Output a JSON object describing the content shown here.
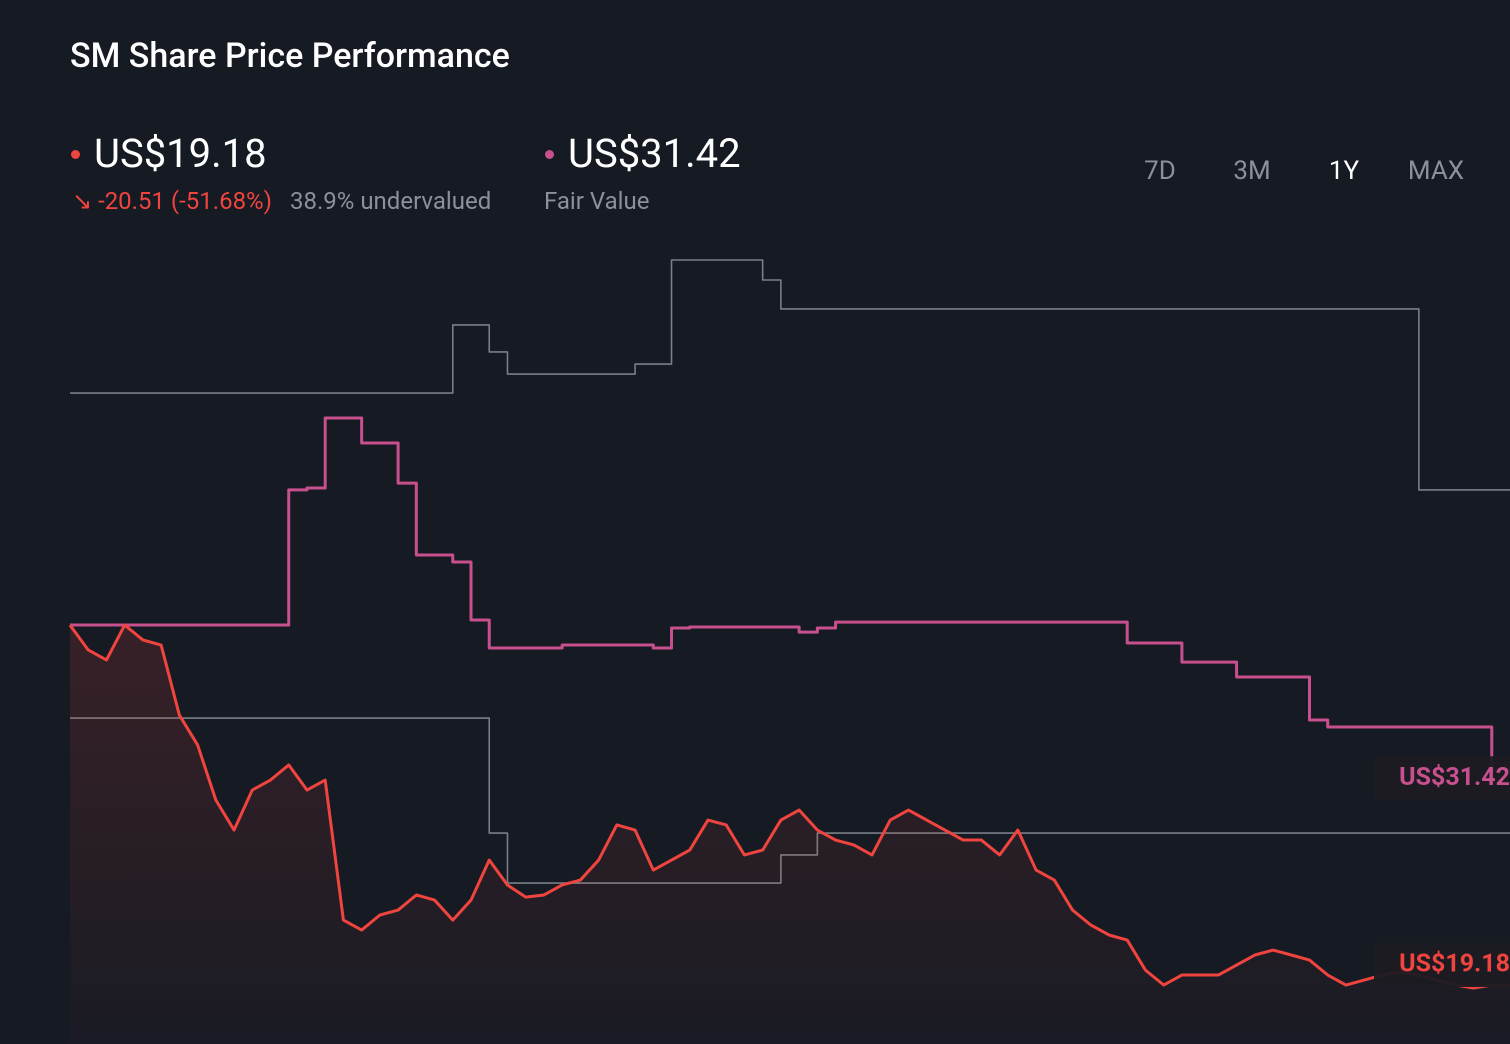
{
  "chart_data": {
    "type": "line",
    "title": "SM Share Price Performance",
    "summary": {
      "change": "-20.51 (-51.68%)",
      "valuation": "38.9% undervalued"
    },
    "periods": [
      "7D",
      "3M",
      "1Y",
      "MAX"
    ],
    "active_period": "1Y",
    "series": [
      {
        "color": "#f0443f",
        "area": true,
        "step": false,
        "last_label": "US$19.18",
        "values": [
          39.69,
          38.27,
          37.7,
          39.69,
          38.84,
          38.55,
          34.56,
          32.86,
          29.72,
          28.01,
          30.29,
          30.86,
          31.72,
          30.29,
          30.86,
          22.88,
          22.31,
          23.17,
          23.45,
          24.31,
          24.02,
          22.88,
          24.02,
          26.3,
          24.88,
          24.19,
          24.31,
          24.88,
          25.16,
          26.3,
          28.3,
          28.01,
          25.73,
          26.3,
          26.87,
          28.58,
          28.3,
          26.59,
          26.87,
          28.58,
          29.15,
          28.01,
          27.44,
          27.16,
          26.59,
          28.58,
          29.15,
          28.58,
          28.01,
          27.44,
          27.44,
          26.59,
          28.01,
          25.73,
          25.16,
          23.45,
          22.6,
          22.03,
          21.74,
          20.03,
          19.18,
          19.75,
          19.75,
          19.75,
          20.32,
          20.89,
          21.17,
          20.89,
          20.6,
          19.75,
          19.18,
          19.46,
          19.75,
          19.92,
          19.75,
          19.46,
          19.18,
          19.01,
          19.18,
          19.18
        ]
      },
      {
        "name": "Fair Value",
        "color": "#c8508f",
        "area": false,
        "step": true,
        "last_label": "US$31.42",
        "values": [
          39.69,
          39.69,
          39.69,
          39.69,
          39.69,
          39.69,
          39.69,
          39.69,
          39.69,
          39.69,
          39.69,
          39.69,
          47.39,
          47.5,
          51.49,
          51.49,
          50.06,
          50.06,
          47.78,
          43.68,
          43.68,
          43.28,
          39.98,
          38.38,
          38.38,
          38.38,
          38.38,
          38.55,
          38.55,
          38.55,
          38.55,
          38.55,
          38.38,
          39.52,
          39.58,
          39.58,
          39.58,
          39.58,
          39.58,
          39.58,
          39.29,
          39.52,
          39.86,
          39.86,
          39.86,
          39.86,
          39.86,
          39.86,
          39.86,
          39.86,
          39.86,
          39.86,
          39.86,
          39.86,
          39.86,
          39.86,
          39.86,
          39.86,
          38.67,
          38.67,
          38.67,
          37.58,
          37.58,
          37.58,
          36.73,
          36.73,
          36.73,
          36.73,
          34.28,
          33.88,
          33.88,
          33.88,
          33.88,
          33.88,
          33.88,
          33.88,
          33.88,
          33.88,
          31.42,
          31.42
        ]
      },
      {
        "color": "#7a7e87",
        "area": false,
        "step": true,
        "values": [
          52.91,
          52.91,
          52.91,
          52.91,
          52.91,
          52.91,
          52.91,
          52.91,
          52.91,
          52.91,
          52.91,
          52.91,
          52.91,
          52.91,
          52.91,
          52.91,
          52.91,
          52.91,
          52.91,
          52.91,
          52.91,
          56.79,
          56.79,
          55.25,
          53.99,
          53.99,
          53.99,
          53.99,
          53.99,
          53.99,
          53.99,
          54.56,
          54.56,
          60.49,
          60.49,
          60.49,
          60.49,
          60.49,
          59.35,
          57.7,
          57.7,
          57.7,
          57.7,
          57.7,
          57.7,
          57.7,
          57.7,
          57.7,
          57.7,
          57.7,
          57.7,
          57.7,
          57.7,
          57.7,
          57.7,
          57.7,
          57.7,
          57.7,
          57.7,
          57.7,
          57.7,
          57.7,
          57.7,
          57.7,
          57.7,
          57.7,
          57.7,
          57.7,
          57.7,
          57.7,
          57.7,
          57.7,
          57.7,
          57.7,
          47.39,
          47.39,
          47.39,
          47.39,
          47.39,
          47.39
        ]
      },
      {
        "color": "#7a7e87",
        "area": false,
        "step": true,
        "values": [
          34.39,
          34.39,
          34.39,
          34.39,
          34.39,
          34.39,
          34.39,
          34.39,
          34.39,
          34.39,
          34.39,
          34.39,
          34.39,
          34.39,
          34.39,
          34.39,
          34.39,
          34.39,
          34.39,
          34.39,
          34.39,
          34.39,
          34.39,
          27.84,
          24.99,
          24.99,
          24.99,
          24.99,
          24.99,
          24.99,
          24.99,
          24.99,
          24.99,
          24.99,
          24.99,
          24.99,
          24.99,
          24.99,
          24.99,
          26.59,
          26.59,
          27.84,
          27.84,
          27.84,
          27.84,
          27.84,
          27.84,
          27.84,
          27.84,
          27.84,
          27.84,
          27.84,
          27.84,
          27.84,
          27.84,
          27.84,
          27.84,
          27.84,
          27.84,
          27.84,
          27.84,
          27.84,
          27.84,
          27.84,
          27.84,
          27.84,
          27.84,
          27.84,
          27.84,
          27.84,
          27.84,
          27.84,
          27.84,
          27.84,
          27.84,
          27.84,
          27.84,
          27.84,
          27.84,
          27.84
        ]
      }
    ]
  }
}
